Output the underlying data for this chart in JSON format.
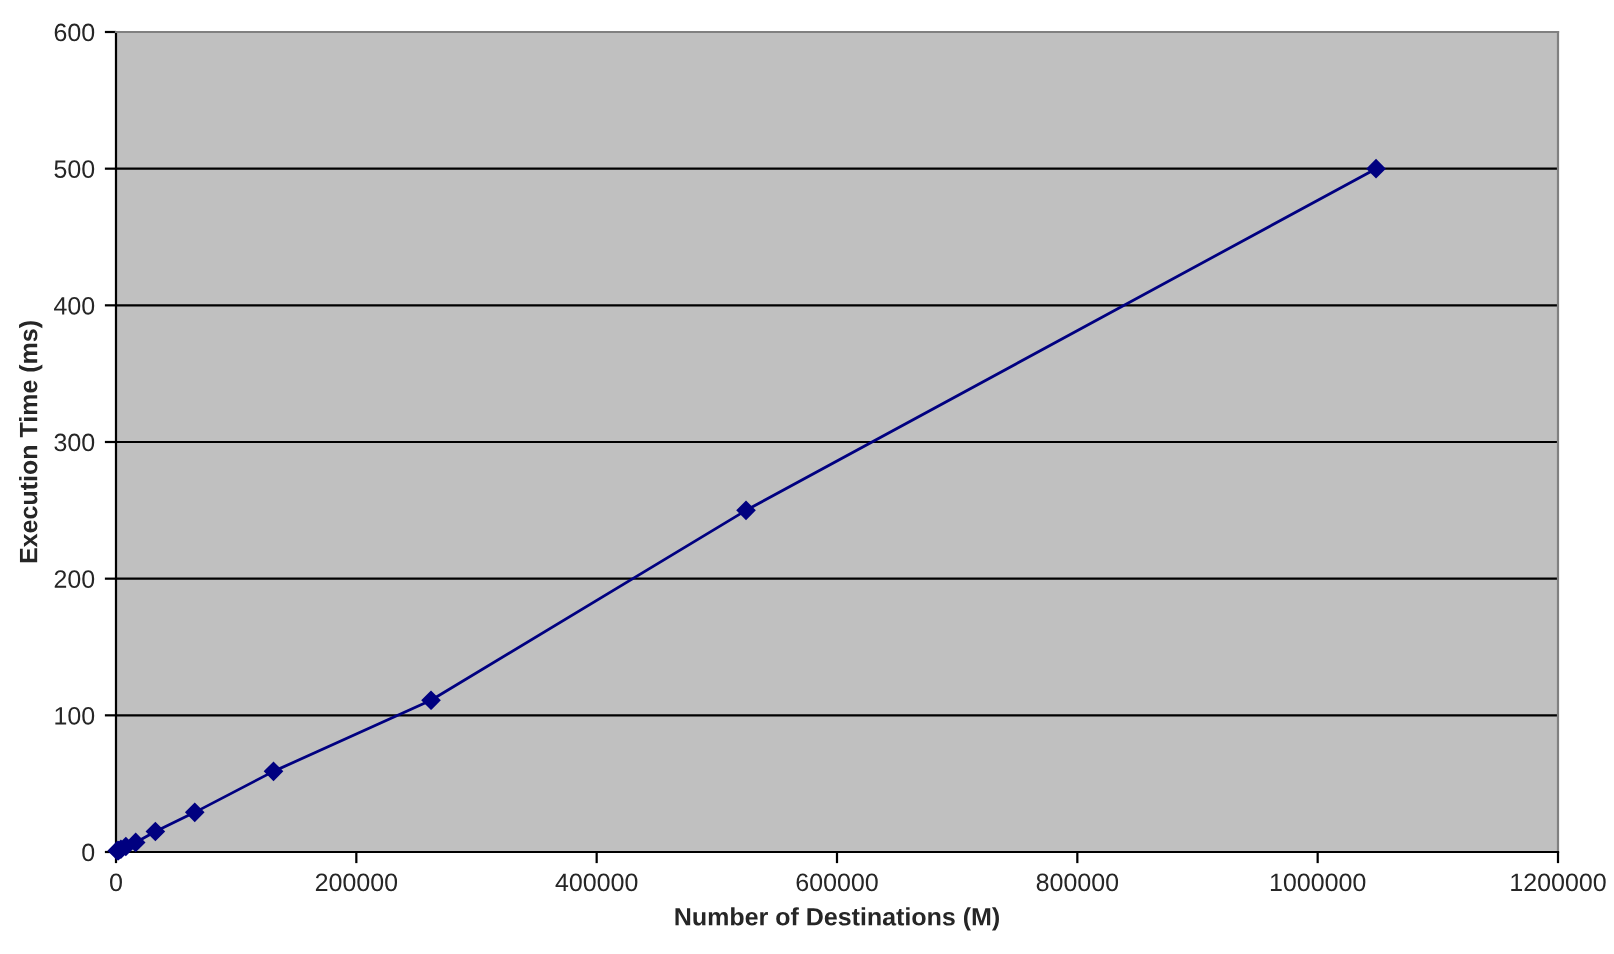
{
  "chart_data": {
    "type": "line",
    "xlabel": "Number of Destinations (M)",
    "ylabel": "Execution Time (ms)",
    "x": [
      1024,
      2048,
      4096,
      8192,
      16384,
      32768,
      65536,
      131072,
      262144,
      524288,
      1048576
    ],
    "series": [
      {
        "color": "#000080",
        "values": [
          1,
          1,
          2,
          4,
          7,
          15,
          29,
          59,
          111,
          250,
          500
        ]
      }
    ],
    "xlim": [
      0,
      1200000
    ],
    "xticks": [
      0,
      200000,
      400000,
      600000,
      800000,
      1000000,
      1200000
    ],
    "ylim": [
      0,
      600
    ],
    "yticks": [
      0,
      100,
      200,
      300,
      400,
      500,
      600
    ],
    "grid": "y",
    "marker": "diamond",
    "line_style": "solid"
  }
}
